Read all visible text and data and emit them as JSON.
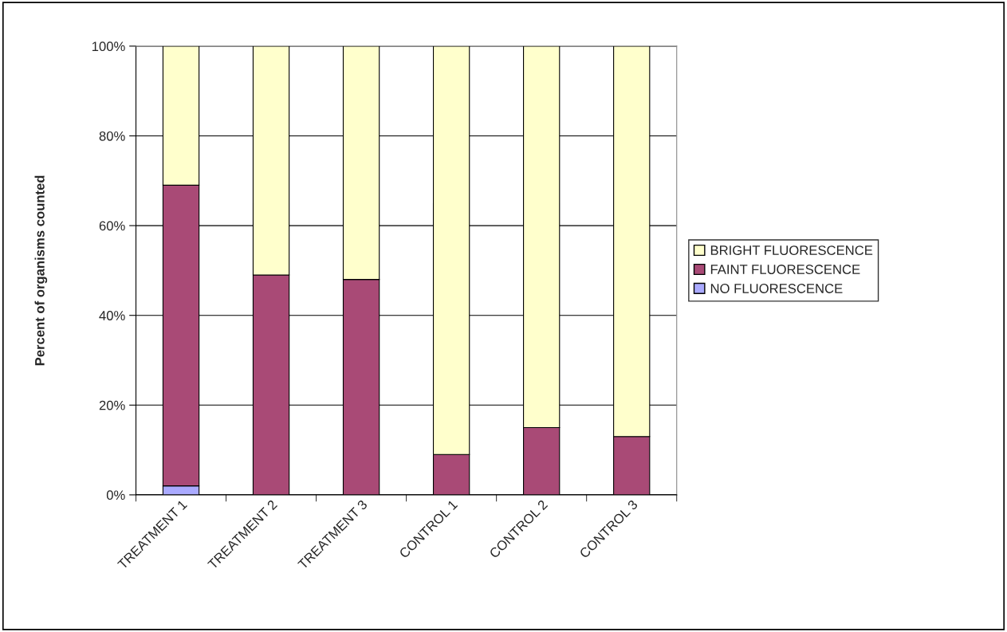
{
  "chart_data": {
    "type": "bar",
    "stacked": true,
    "ylabel": "Percent of organisms counted",
    "categories": [
      "TREATMENT 1",
      "TREATMENT 2",
      "TREATMENT 3",
      "CONTROL 1",
      "CONTROL 2",
      "CONTROL 3"
    ],
    "series": [
      {
        "name": "NO FLUORESCENCE",
        "color": "#aaaaff",
        "values": [
          2,
          0,
          0,
          0,
          0,
          0
        ]
      },
      {
        "name": "FAINT FLUORESCENCE",
        "color": "#a94a76",
        "values": [
          67,
          49,
          48,
          9,
          15,
          13
        ]
      },
      {
        "name": "BRIGHT FLUORESCENCE",
        "color": "#ffffcc",
        "values": [
          31,
          51,
          52,
          91,
          85,
          87
        ]
      }
    ],
    "ylim": [
      0,
      100
    ],
    "yticks": [
      {
        "value": 0,
        "label": "0%"
      },
      {
        "value": 20,
        "label": "20%"
      },
      {
        "value": 40,
        "label": "40%"
      },
      {
        "value": 60,
        "label": "60%"
      },
      {
        "value": 80,
        "label": "80%"
      },
      {
        "value": 100,
        "label": "100%"
      }
    ],
    "grid": "y",
    "legend": "right"
  }
}
